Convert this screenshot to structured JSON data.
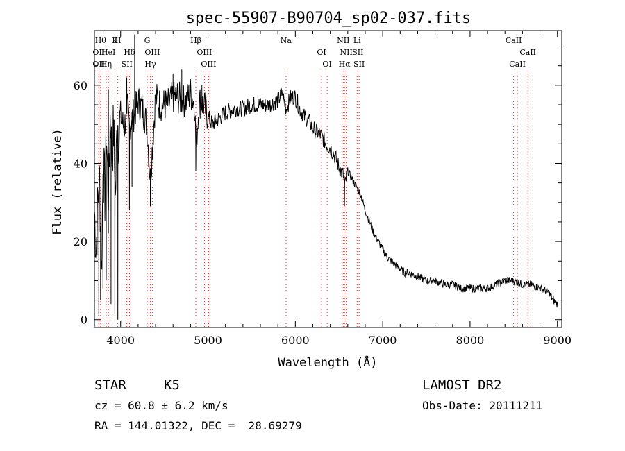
{
  "chart_data": {
    "type": "line",
    "title": "spec-55907-B90704_sp02-037.fits",
    "xlabel": "Wavelength (Å)",
    "ylabel": "Flux (relative)",
    "xlim": [
      3700,
      9050
    ],
    "ylim": [
      -2,
      74
    ],
    "xticks": [
      4000,
      5000,
      6000,
      7000,
      8000,
      9000
    ],
    "yticks": [
      0,
      20,
      40,
      60
    ],
    "grid": false,
    "series": [
      {
        "x": [
          3700,
          3720,
          3740,
          3760,
          3780,
          3800,
          3820,
          3840,
          3860,
          3880,
          3900,
          3920,
          3940,
          3960,
          3980,
          4000,
          4040,
          4080,
          4100,
          4120,
          4160,
          4200,
          4250,
          4300,
          4340,
          4400,
          4450,
          4500,
          4550,
          4600,
          4650,
          4700,
          4750,
          4800,
          4850,
          4861,
          4900,
          4950,
          5000,
          5050,
          5100,
          5150,
          5200,
          5300,
          5400,
          5500,
          5600,
          5700,
          5800,
          5850,
          5893,
          5950,
          6000,
          6050,
          6100,
          6150,
          6200,
          6250,
          6300,
          6350,
          6400,
          6450,
          6500,
          6550,
          6563,
          6600,
          6650,
          6700,
          6750,
          6800,
          6850,
          6900,
          6950,
          7000,
          7050,
          7100,
          7150,
          7200,
          7250,
          7300,
          7400,
          7500,
          7600,
          7700,
          7800,
          7900,
          8000,
          8100,
          8200,
          8300,
          8400,
          8500,
          8600,
          8700,
          8800,
          8900,
          8950,
          9000
        ],
        "y": [
          28,
          18,
          30,
          36,
          12,
          40,
          32,
          46,
          28,
          52,
          42,
          49,
          30,
          51,
          48,
          52,
          49,
          54,
          50,
          51,
          53,
          56,
          54,
          50,
          36,
          57,
          55,
          55,
          55,
          57,
          57,
          56,
          56,
          58,
          55,
          44,
          56,
          55,
          52,
          50,
          51,
          52,
          53,
          54,
          54,
          55,
          55,
          55,
          56,
          58,
          54,
          57,
          57,
          54,
          52,
          51,
          49,
          48,
          47,
          45,
          44,
          42,
          39,
          37,
          34,
          38,
          36,
          34,
          32,
          28,
          25,
          22,
          20,
          18,
          16,
          15,
          14,
          13,
          12,
          12,
          11,
          10,
          10,
          9,
          9,
          8,
          8,
          8,
          8,
          9,
          10,
          10,
          9,
          9,
          8,
          7,
          5,
          4
        ]
      }
    ],
    "absorption_spikes": [
      {
        "x": 3750,
        "y": 1
      },
      {
        "x": 3770,
        "y": 5
      },
      {
        "x": 3798,
        "y": 8
      },
      {
        "x": 3835,
        "y": 10
      },
      {
        "x": 3890,
        "y": 4
      },
      {
        "x": 3934,
        "y": 1
      },
      {
        "x": 3968,
        "y": 0
      },
      {
        "x": 4101,
        "y": 28
      },
      {
        "x": 4130,
        "y": 34
      },
      {
        "x": 4340,
        "y": 29
      },
      {
        "x": 4861,
        "y": 38
      },
      {
        "x": 4920,
        "y": 46
      },
      {
        "x": 6563,
        "y": 29
      }
    ],
    "emission_spikes": [
      {
        "x": 3860,
        "y": 59
      },
      {
        "x": 4070,
        "y": 62
      },
      {
        "x": 4160,
        "y": 73
      },
      {
        "x": 4600,
        "y": 63
      },
      {
        "x": 4700,
        "y": 64
      },
      {
        "x": 4930,
        "y": 60
      },
      {
        "x": 8430,
        "y": 11
      }
    ],
    "line_markers": [
      {
        "x": 3750,
        "row": 1,
        "label": "OII"
      },
      {
        "x": 3750,
        "row": 2,
        "label": "OII"
      },
      {
        "x": 3770,
        "row": 0,
        "label": "Hθ"
      },
      {
        "x": 3835,
        "row": 2,
        "label": "Hη"
      },
      {
        "x": 3860,
        "row": 1,
        "label": "HeI"
      },
      {
        "x": 3934,
        "row": 0,
        "label": "K"
      },
      {
        "x": 3968,
        "row": 0,
        "label": "H"
      },
      {
        "x": 4101,
        "row": 1,
        "label": "Hδ"
      },
      {
        "x": 4072,
        "row": 2,
        "label": "SII"
      },
      {
        "x": 4304,
        "row": 0,
        "label": "G"
      },
      {
        "x": 4363,
        "row": 1,
        "label": "OIII"
      },
      {
        "x": 4340,
        "row": 2,
        "label": "Hγ"
      },
      {
        "x": 4861,
        "row": 0,
        "label": "Hβ"
      },
      {
        "x": 4959,
        "row": 1,
        "label": "OIII"
      },
      {
        "x": 5007,
        "row": 2,
        "label": "OIII"
      },
      {
        "x": 5893,
        "row": 0,
        "label": "Na"
      },
      {
        "x": 6300,
        "row": 1,
        "label": "OI"
      },
      {
        "x": 6364,
        "row": 2,
        "label": "OI"
      },
      {
        "x": 6548,
        "row": 0,
        "label": "NII"
      },
      {
        "x": 6583,
        "row": 1,
        "label": "NII"
      },
      {
        "x": 6563,
        "row": 2,
        "label": "Hα"
      },
      {
        "x": 6716,
        "row": 1,
        "label": "SII"
      },
      {
        "x": 6730,
        "row": 2,
        "label": "SII"
      },
      {
        "x": 6707,
        "row": 0,
        "label": "Li"
      },
      {
        "x": 8498,
        "row": 0,
        "label": "CaII"
      },
      {
        "x": 8542,
        "row": 2,
        "label": "CaII"
      },
      {
        "x": 8662,
        "row": 1,
        "label": "CaII"
      }
    ]
  },
  "info": {
    "object_class": "STAR",
    "subclass": "K5",
    "survey": "LAMOST DR2",
    "cz": "cz = 60.8 ± 6.2 km/s",
    "obs_date": "Obs-Date: 20111211",
    "coords": "RA = 144.01322, DEC =  28.69279"
  }
}
